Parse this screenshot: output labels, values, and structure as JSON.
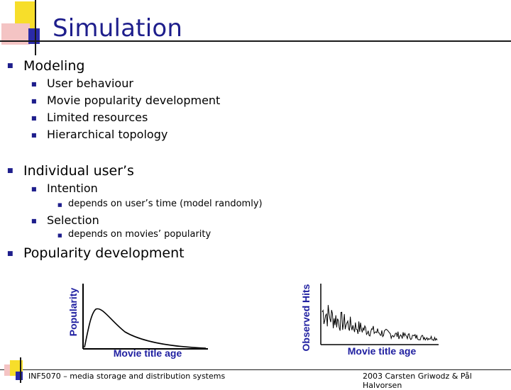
{
  "slide": {
    "title": "Simulation",
    "items": [
      {
        "text": "Modeling",
        "children": [
          {
            "text": "User behaviour"
          },
          {
            "text": "Movie popularity development"
          },
          {
            "text": "Limited resources"
          },
          {
            "text": "Hierarchical topology"
          }
        ]
      },
      {
        "text": "Individual user’s",
        "children": [
          {
            "text": "Intention",
            "children": [
              {
                "text": "depends on user’s time (model randomly)"
              }
            ]
          },
          {
            "text": "Selection",
            "children": [
              {
                "text": "depends on movies’ popularity"
              }
            ]
          }
        ]
      },
      {
        "text": "Popularity development"
      }
    ]
  },
  "figures": {
    "left": {
      "ylabel": "Popularity",
      "xlabel": "Movie title age"
    },
    "right": {
      "ylabel": "Observed Hits",
      "xlabel": "Movie title age"
    }
  },
  "footer": {
    "left": "INF5070 – media storage and distribution systems",
    "right": "2003  Carsten Griwodz & Pål Halvorsen"
  },
  "colors": {
    "accent": "#1e1e8c",
    "axis_label": "#1e1ea0"
  }
}
